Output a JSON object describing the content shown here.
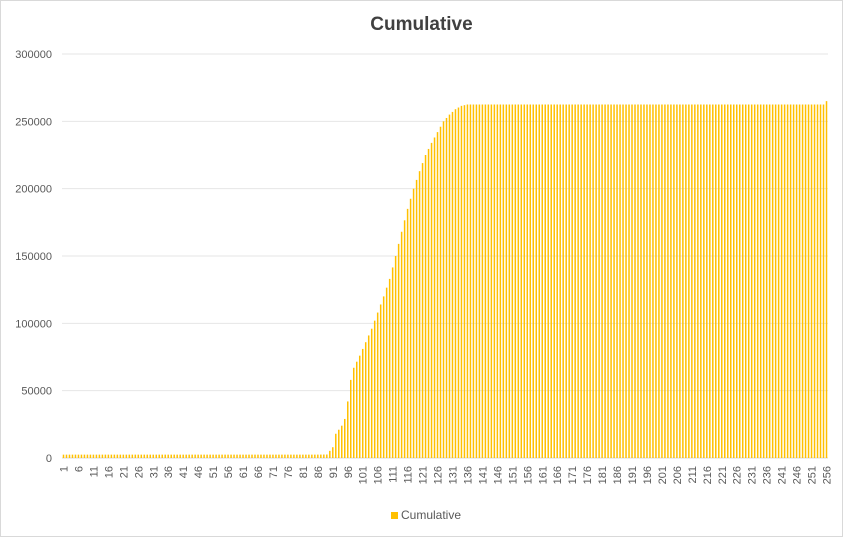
{
  "chart_data": {
    "type": "bar",
    "title": "Cumulative",
    "xlabel": "",
    "ylabel": "",
    "ylim": [
      0,
      300000
    ],
    "y_ticks": [
      0,
      50000,
      100000,
      150000,
      200000,
      250000,
      300000
    ],
    "x_range": [
      1,
      256
    ],
    "x_tick_labels": [
      1,
      6,
      11,
      16,
      21,
      26,
      31,
      36,
      41,
      46,
      51,
      56,
      61,
      66,
      71,
      76,
      81,
      86,
      91,
      96,
      101,
      106,
      111,
      116,
      121,
      126,
      131,
      136,
      141,
      146,
      151,
      156,
      161,
      166,
      171,
      176,
      181,
      186,
      191,
      196,
      201,
      206,
      211,
      216,
      221,
      226,
      231,
      236,
      241,
      246,
      251,
      256
    ],
    "legend_position": "bottom",
    "grid": true,
    "series": [
      {
        "name": "Cumulative",
        "color": "#ffc000",
        "points": [
          [
            1,
            2500
          ],
          [
            85,
            2500
          ],
          [
            89,
            2600
          ],
          [
            91,
            8000
          ],
          [
            92,
            18000
          ],
          [
            93,
            21000
          ],
          [
            94,
            24000
          ],
          [
            95,
            29000
          ],
          [
            96,
            42000
          ],
          [
            97,
            58000
          ],
          [
            98,
            67000
          ],
          [
            100,
            76000
          ],
          [
            102,
            86000
          ],
          [
            104,
            96000
          ],
          [
            106,
            108000
          ],
          [
            108,
            120000
          ],
          [
            110,
            133000
          ],
          [
            112,
            150000
          ],
          [
            114,
            168000
          ],
          [
            116,
            185000
          ],
          [
            118,
            200000
          ],
          [
            120,
            213000
          ],
          [
            122,
            225000
          ],
          [
            124,
            234000
          ],
          [
            126,
            242000
          ],
          [
            128,
            250000
          ],
          [
            130,
            255000
          ],
          [
            132,
            259000
          ],
          [
            134,
            261500
          ],
          [
            136,
            262500
          ],
          [
            255,
            262500
          ],
          [
            256,
            265000
          ]
        ]
      }
    ]
  }
}
